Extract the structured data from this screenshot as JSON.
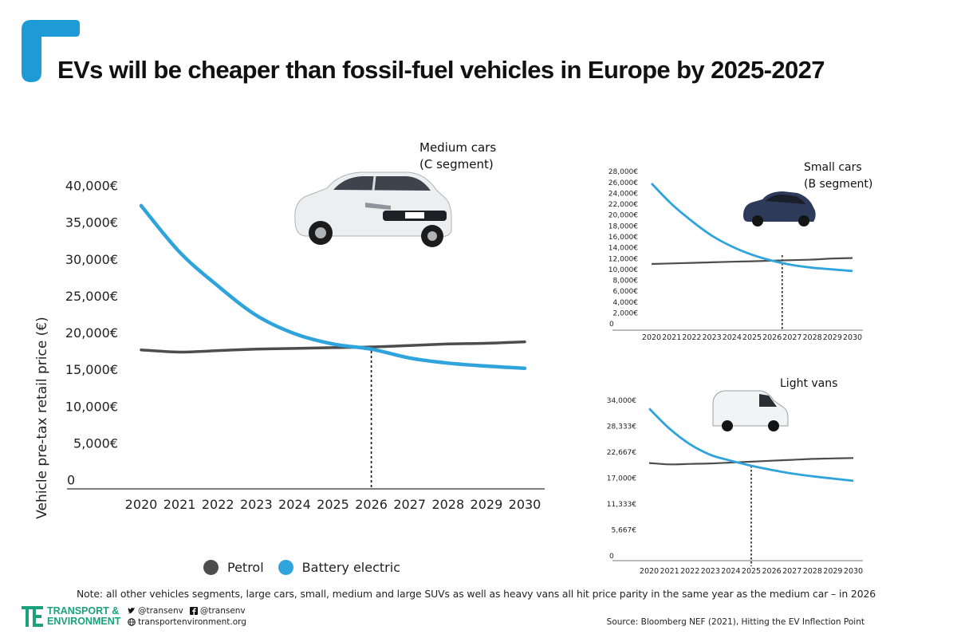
{
  "title": "EVs will be cheaper than fossil-fuel vehicles in Europe by 2025-2027",
  "colors": {
    "accent": "#1e9bd7",
    "petrol": "#4d4d4d",
    "battery": "#2ea3dc",
    "brand_green": "#1aa37a"
  },
  "chart_data": [
    {
      "type": "line",
      "title": "Medium cars\n(C segment)",
      "ylabel": "Vehicle pre-tax retail price (€)",
      "x": [
        2020,
        2021,
        2022,
        2023,
        2024,
        2025,
        2026,
        2027,
        2028,
        2029,
        2030
      ],
      "ylim": [
        0,
        40000
      ],
      "y_ticks": [
        "0",
        "5,000€",
        "10,000€",
        "15,000€",
        "20,000€",
        "25,000€",
        "30,000€",
        "35,000€",
        "40,000€"
      ],
      "series": [
        {
          "name": "Petrol",
          "values": [
            17700,
            17400,
            17600,
            17800,
            17900,
            18000,
            18100,
            18300,
            18500,
            18600,
            18800
          ]
        },
        {
          "name": "Battery electric",
          "values": [
            37300,
            31000,
            26400,
            22400,
            19900,
            18500,
            17800,
            16600,
            15900,
            15500,
            15200
          ]
        }
      ],
      "parity_year": 2026
    },
    {
      "type": "line",
      "title": "Small cars\n(B segment)",
      "x": [
        2020,
        2021,
        2022,
        2023,
        2024,
        2025,
        2026,
        2027,
        2028,
        2029,
        2030
      ],
      "ylim": [
        0,
        28000
      ],
      "y_ticks": [
        "0",
        "2,000€",
        "4,000€",
        "6,000€",
        "8,000€",
        "10,000€",
        "12,000€",
        "14,000€",
        "16,000€",
        "18,000€",
        "20,000€",
        "22,000€",
        "24,000€",
        "26,000€",
        "28,000€"
      ],
      "series": [
        {
          "name": "Petrol",
          "values": [
            11000,
            11100,
            11200,
            11300,
            11400,
            11500,
            11600,
            11700,
            11800,
            12000,
            12100
          ]
        },
        {
          "name": "Battery electric",
          "values": [
            25800,
            22000,
            18900,
            16200,
            14200,
            12700,
            11600,
            10800,
            10300,
            10000,
            9700
          ]
        }
      ],
      "parity_year": 2026.5
    },
    {
      "type": "line",
      "title": "Light vans",
      "x": [
        2020,
        2021,
        2022,
        2023,
        2024,
        2025,
        2026,
        2027,
        2028,
        2029,
        2030
      ],
      "ylim": [
        0,
        34000
      ],
      "y_ticks": [
        "0",
        "5,667€",
        "11,333€",
        "17,000€",
        "22,667€",
        "28,333€",
        "34,000€"
      ],
      "series": [
        {
          "name": "Petrol",
          "values": [
            20300,
            20000,
            20100,
            20200,
            20400,
            20600,
            20800,
            21000,
            21200,
            21300,
            21400
          ]
        },
        {
          "name": "Battery electric",
          "values": [
            32200,
            27800,
            24400,
            22100,
            20800,
            19700,
            18800,
            18000,
            17400,
            16900,
            16400
          ]
        }
      ],
      "parity_year": 2025
    }
  ],
  "legend": {
    "petrol": "Petrol",
    "battery": "Battery electric"
  },
  "note": "Note: all other vehicles segments, large cars, small, medium and large SUVs as well as heavy vans all hit price parity in the same year as the medium car – in 2026",
  "footer": {
    "org_line1": "TRANSPORT &",
    "org_line2": "ENVIRONMENT",
    "twitter": "@transenv",
    "facebook": "@transenv",
    "website": "transportenvironment.org",
    "source": "Source: Bloomberg NEF (2021), Hitting the EV Inflection Point"
  }
}
